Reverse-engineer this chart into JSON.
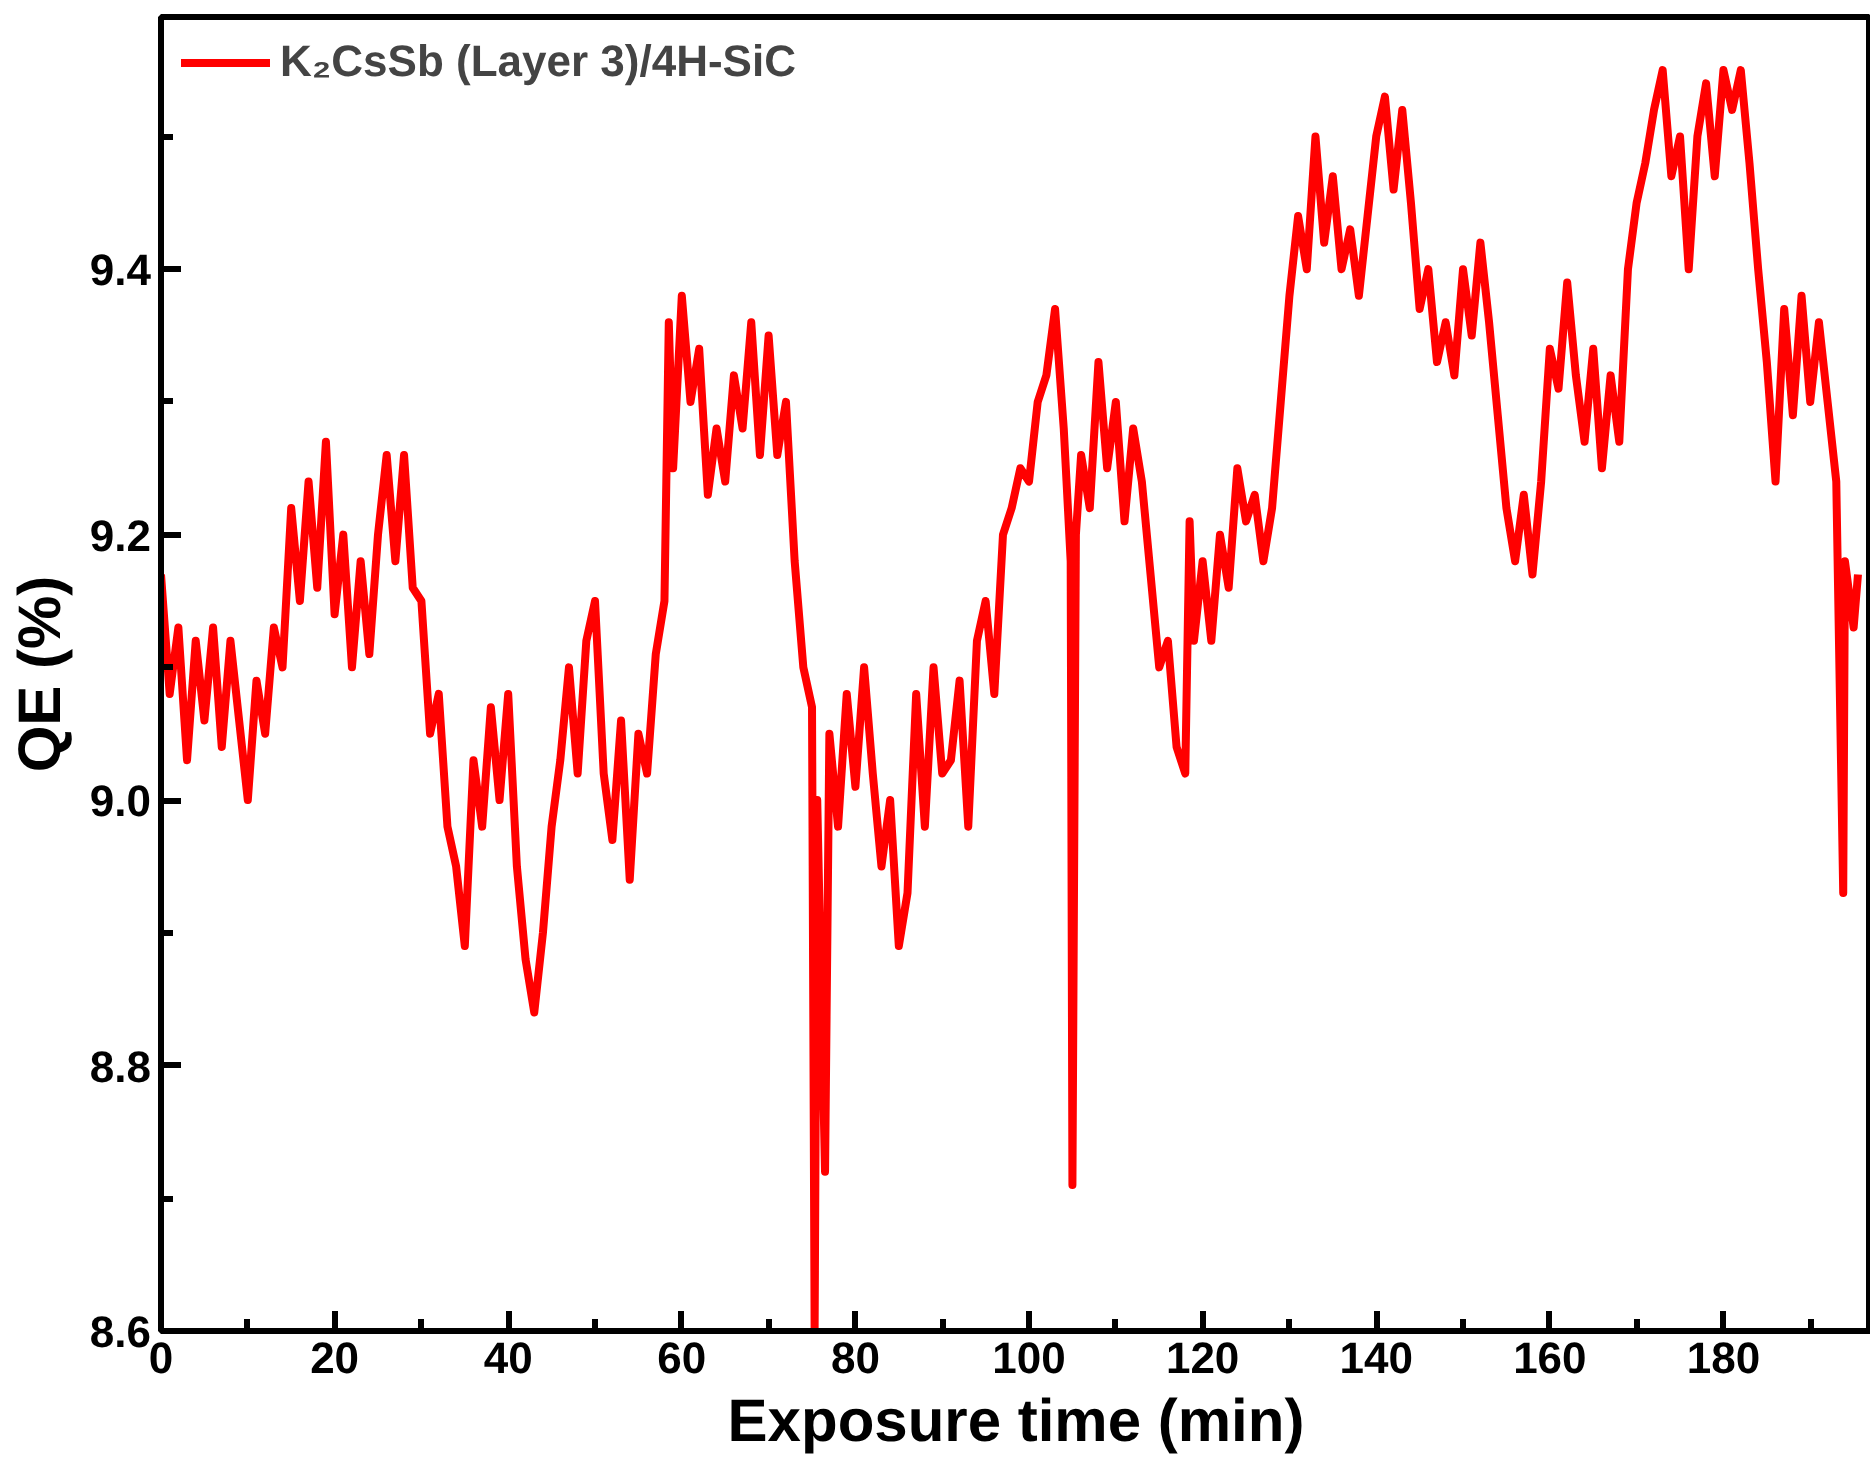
{
  "chart_data": {
    "type": "line",
    "xlabel": "Exposure time (min)",
    "ylabel": "QE (%)",
    "legend": "top left",
    "line_style": "solid",
    "xlim": [
      0,
      197
    ],
    "ylim": [
      8.6,
      9.59
    ],
    "xticks": [
      0,
      {
        "value": 10,
        "label": null
      },
      20,
      {
        "value": 30,
        "label": null
      },
      40,
      {
        "value": 50,
        "label": null
      },
      60,
      {
        "value": 70,
        "label": null
      },
      80,
      {
        "value": 90,
        "label": null
      },
      100,
      {
        "value": 110,
        "label": null
      },
      120,
      {
        "value": 130,
        "label": null
      },
      140,
      {
        "value": 150,
        "label": null
      },
      160,
      {
        "value": 170,
        "label": null
      },
      180,
      {
        "value": 190,
        "label": null
      }
    ],
    "yticks": [
      {
        "value": 8.6,
        "label": "8.6"
      },
      {
        "value": 8.7,
        "label": null
      },
      {
        "value": 8.8,
        "label": "8.8"
      },
      {
        "value": 8.9,
        "label": null
      },
      {
        "value": 9.0,
        "label": "9.0"
      },
      {
        "value": 9.1,
        "label": null
      },
      {
        "value": 9.2,
        "label": "9.2"
      },
      {
        "value": 9.3,
        "label": null
      },
      {
        "value": 9.4,
        "label": "9.4"
      },
      {
        "value": 9.5,
        "label": null
      }
    ],
    "series": [
      {
        "name": "K₂CsSb (Layer 3)/4H-SiC",
        "color": "#ff0000",
        "x": [
          0,
          1,
          2,
          3,
          4,
          5,
          6,
          7,
          8,
          9,
          10,
          11,
          12,
          13,
          14,
          15,
          16,
          17,
          18,
          19,
          20,
          21,
          22,
          23,
          24,
          25,
          26,
          27,
          28,
          29,
          30,
          31,
          32,
          33,
          34,
          35,
          36,
          37,
          38,
          39,
          40,
          41,
          42,
          43,
          44,
          45,
          46,
          47,
          48,
          49,
          50,
          51,
          52,
          53,
          54,
          55,
          56,
          57,
          58,
          58.5,
          59,
          60,
          61,
          62,
          63,
          64,
          65,
          66,
          67,
          68,
          69,
          70,
          71,
          72,
          73,
          74,
          75,
          75.3,
          75.6,
          76.5,
          77,
          78,
          79,
          80,
          81,
          82,
          83,
          84,
          85,
          86,
          87,
          88,
          89,
          90,
          91,
          92,
          93,
          94,
          95,
          96,
          97,
          98,
          99,
          100,
          101,
          102,
          103,
          104,
          104.8,
          105,
          105.4,
          106,
          107,
          108,
          109,
          110,
          111,
          112,
          113,
          114,
          115,
          116,
          117,
          118,
          118.5,
          119,
          120,
          121,
          122,
          123,
          124,
          125,
          126,
          127,
          128,
          129,
          130,
          131,
          132,
          133,
          134,
          135,
          136,
          137,
          138,
          139,
          140,
          141,
          142,
          143,
          144,
          145,
          146,
          147,
          148,
          149,
          150,
          151,
          152,
          153,
          154,
          155,
          156,
          157,
          158,
          159,
          160,
          161,
          162,
          163,
          164,
          165,
          166,
          167,
          168,
          169,
          170,
          171,
          172,
          173,
          174,
          175,
          176,
          177,
          178,
          179,
          180,
          181,
          182,
          183,
          184,
          185,
          186,
          187,
          188,
          189,
          190,
          191,
          192,
          193,
          193.8,
          194,
          195,
          195.5
        ],
        "values": [
          9.17,
          9.08,
          9.13,
          9.03,
          9.12,
          9.06,
          9.13,
          9.04,
          9.12,
          9.06,
          9.0,
          9.09,
          9.05,
          9.13,
          9.1,
          9.22,
          9.15,
          9.24,
          9.16,
          9.27,
          9.14,
          9.2,
          9.1,
          9.18,
          9.11,
          9.2,
          9.26,
          9.18,
          9.26,
          9.16,
          9.15,
          9.05,
          9.08,
          8.98,
          8.95,
          8.89,
          9.03,
          8.98,
          9.07,
          9.0,
          9.08,
          8.95,
          8.88,
          8.84,
          8.9,
          8.98,
          9.03,
          9.1,
          9.02,
          9.12,
          9.15,
          9.02,
          8.97,
          9.06,
          8.94,
          9.05,
          9.02,
          9.11,
          9.15,
          9.36,
          9.25,
          9.38,
          9.3,
          9.34,
          9.23,
          9.28,
          9.24,
          9.32,
          9.28,
          9.36,
          9.26,
          9.35,
          9.26,
          9.3,
          9.18,
          9.1,
          9.07,
          8.6,
          9.0,
          8.72,
          9.05,
          8.98,
          9.08,
          9.01,
          9.1,
          9.02,
          8.95,
          9.0,
          8.89,
          8.93,
          9.08,
          8.98,
          9.1,
          9.02,
          9.03,
          9.09,
          8.98,
          9.12,
          9.15,
          9.08,
          9.2,
          9.22,
          9.25,
          9.24,
          9.3,
          9.32,
          9.37,
          9.28,
          9.18,
          8.71,
          9.2,
          9.26,
          9.22,
          9.33,
          9.25,
          9.3,
          9.21,
          9.28,
          9.24,
          9.17,
          9.1,
          9.12,
          9.04,
          9.02,
          9.21,
          9.12,
          9.18,
          9.12,
          9.2,
          9.16,
          9.25,
          9.21,
          9.23,
          9.18,
          9.22,
          9.3,
          9.38,
          9.44,
          9.4,
          9.5,
          9.42,
          9.47,
          9.4,
          9.43,
          9.38,
          9.44,
          9.5,
          9.53,
          9.46,
          9.52,
          9.45,
          9.37,
          9.4,
          9.33,
          9.36,
          9.32,
          9.4,
          9.35,
          9.42,
          9.36,
          9.29,
          9.22,
          9.18,
          9.23,
          9.17,
          9.24,
          9.34,
          9.31,
          9.39,
          9.32,
          9.27,
          9.34,
          9.25,
          9.32,
          9.27,
          9.4,
          9.45,
          9.48,
          9.52,
          9.55,
          9.47,
          9.5,
          9.4,
          9.5,
          9.54,
          9.47,
          9.55,
          9.52,
          9.55,
          9.48,
          9.4,
          9.33,
          9.24,
          9.37,
          9.29,
          9.38,
          9.3,
          9.36,
          9.3,
          9.24,
          8.93,
          9.18,
          9.13,
          9.17
        ]
      }
    ]
  }
}
